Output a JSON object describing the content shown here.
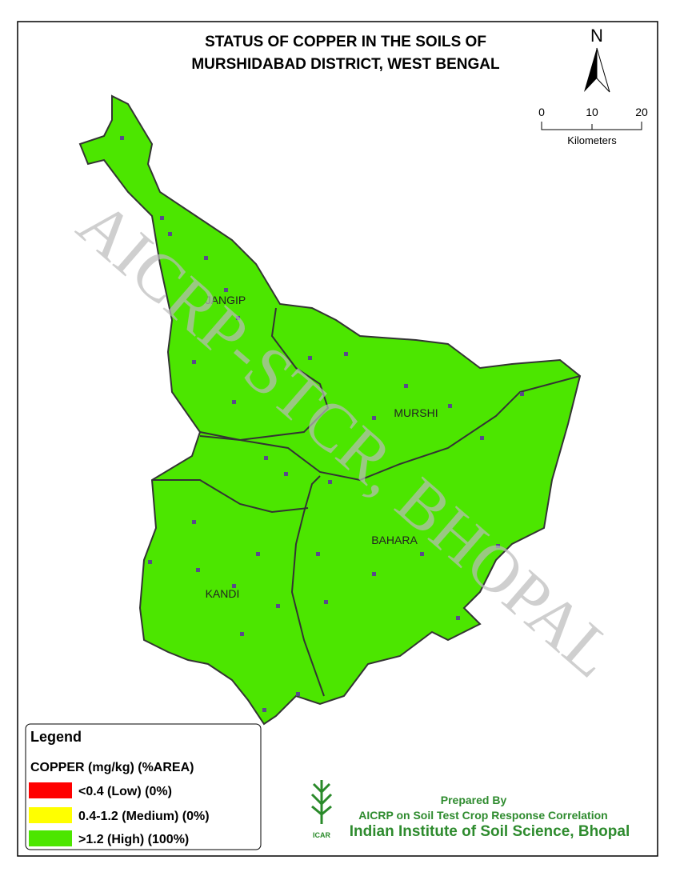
{
  "title": [
    "STATUS OF COPPER IN THE SOILS OF",
    "MURSHIDABAD DISTRICT, WEST BENGAL"
  ],
  "north_arrow": "N",
  "scale_bar": {
    "labels": [
      "0",
      "10",
      "20"
    ],
    "unit": "Kilometers"
  },
  "regions": [
    "JANGIP",
    "MURSHI",
    "BAHARA",
    "KANDI"
  ],
  "watermark": "AICRP-STCR, BHOPAL",
  "legend": {
    "title": "Legend",
    "subtitle": "COPPER (mg/kg) (%AREA)",
    "items": [
      {
        "label": "<0.4 (Low) (0%)",
        "color": "#ff0000"
      },
      {
        "label": "0.4-1.2 (Medium) (0%)",
        "color": "#ffff00"
      },
      {
        "label": ">1.2 (High) (100%)",
        "color": "#4ce600"
      }
    ]
  },
  "credit": {
    "prepared": "Prepared By",
    "project": "AICRP on Soil Test Crop Response Correlation",
    "institute": "Indian Institute of Soil Science, Bhopal",
    "logo": "ICAR"
  }
}
